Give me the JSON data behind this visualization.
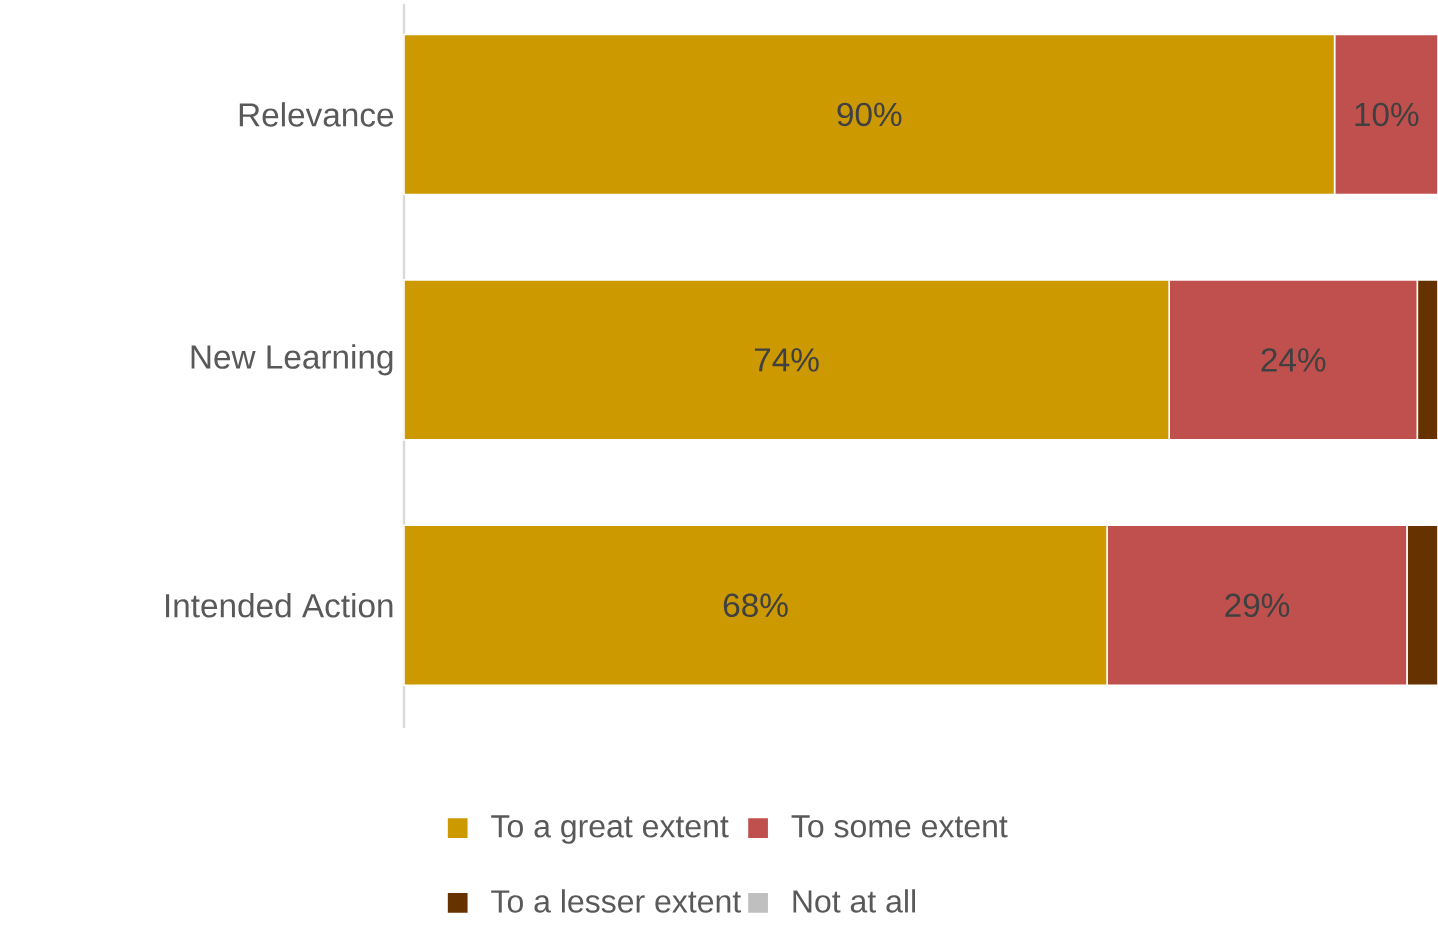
{
  "chart_data": {
    "type": "bar",
    "orientation": "horizontal",
    "stacked": true,
    "categories": [
      "Relevance",
      "New Learning",
      "Intended Action"
    ],
    "xlim": [
      0,
      100
    ],
    "series": [
      {
        "name": "To a great extent",
        "color": "#cc9900",
        "values": [
          90,
          74,
          68
        ],
        "value_labels": [
          "90%",
          "74%",
          "68%"
        ]
      },
      {
        "name": "To some extent",
        "color": "#c0504d",
        "values": [
          10,
          24,
          29
        ],
        "value_labels": [
          "10%",
          "24%",
          "29%"
        ]
      },
      {
        "name": "To a lesser extent",
        "color": "#663300",
        "values": [
          0,
          2,
          3
        ],
        "value_labels": [
          null,
          null,
          null
        ]
      },
      {
        "name": "Not at all",
        "color": "#bfbfbf",
        "values": [
          0,
          0,
          0
        ],
        "value_labels": [
          null,
          null,
          null
        ]
      }
    ],
    "legend": "bottom"
  }
}
